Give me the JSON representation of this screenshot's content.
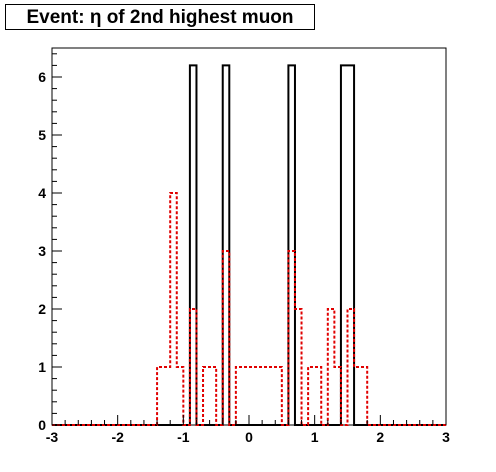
{
  "chart_data": {
    "type": "histogram",
    "title": "Event: η of 2nd highest muon",
    "xlabel": "",
    "ylabel": "",
    "xlim": [
      -3,
      3
    ],
    "ylim": [
      0,
      6.5
    ],
    "grid": false,
    "x_ticks": [
      -3,
      -2,
      -1,
      0,
      1,
      2,
      3
    ],
    "y_ticks": [
      0,
      1,
      2,
      3,
      4,
      5,
      6
    ],
    "bin_edges": [
      -3.0,
      -2.9,
      -2.8,
      -2.7,
      -2.6,
      -2.5,
      -2.4,
      -2.3,
      -2.2,
      -2.1,
      -2.0,
      -1.9,
      -1.8,
      -1.7,
      -1.6,
      -1.5,
      -1.4,
      -1.3,
      -1.2,
      -1.1,
      -1.0,
      -0.9,
      -0.8,
      -0.7,
      -0.6,
      -0.5,
      -0.4,
      -0.3,
      -0.2,
      -0.1,
      0.0,
      0.1,
      0.2,
      0.3,
      0.4,
      0.5,
      0.6,
      0.7,
      0.8,
      0.9,
      1.0,
      1.1,
      1.2,
      1.3,
      1.4,
      1.5,
      1.6,
      1.7,
      1.8,
      1.9,
      2.0,
      2.1,
      2.2,
      2.3,
      2.4,
      2.5,
      2.6,
      2.7,
      2.8,
      2.9,
      3.0
    ],
    "series": [
      {
        "style": "solid",
        "color": "#000000",
        "values": [
          0,
          0,
          0,
          0,
          0,
          0,
          0,
          0,
          0,
          0,
          0,
          0,
          0,
          0,
          0,
          0,
          0,
          0,
          0,
          0,
          0,
          6.2,
          0,
          0,
          0,
          0,
          6.2,
          0,
          0,
          0,
          0,
          0,
          0,
          0,
          0,
          0,
          6.2,
          0,
          0,
          0,
          0,
          0,
          0,
          0,
          6.2,
          6.2,
          0,
          0,
          0,
          0,
          0,
          0,
          0,
          0,
          0,
          0,
          0,
          0,
          0,
          0
        ]
      },
      {
        "style": "dashed",
        "color": "#e00000",
        "values": [
          0,
          0,
          0,
          0,
          0,
          0,
          0,
          0,
          0,
          0,
          0,
          0,
          0,
          0,
          0,
          0,
          1,
          1,
          4,
          1,
          0,
          2,
          0,
          1,
          1,
          0,
          3,
          0,
          1,
          1,
          1,
          1,
          1,
          1,
          1,
          0,
          3,
          2,
          0,
          1,
          1,
          0,
          2,
          1,
          0,
          2,
          1,
          1,
          0,
          0,
          0,
          0,
          0,
          0,
          0,
          0,
          0,
          0,
          0,
          0
        ]
      }
    ]
  }
}
